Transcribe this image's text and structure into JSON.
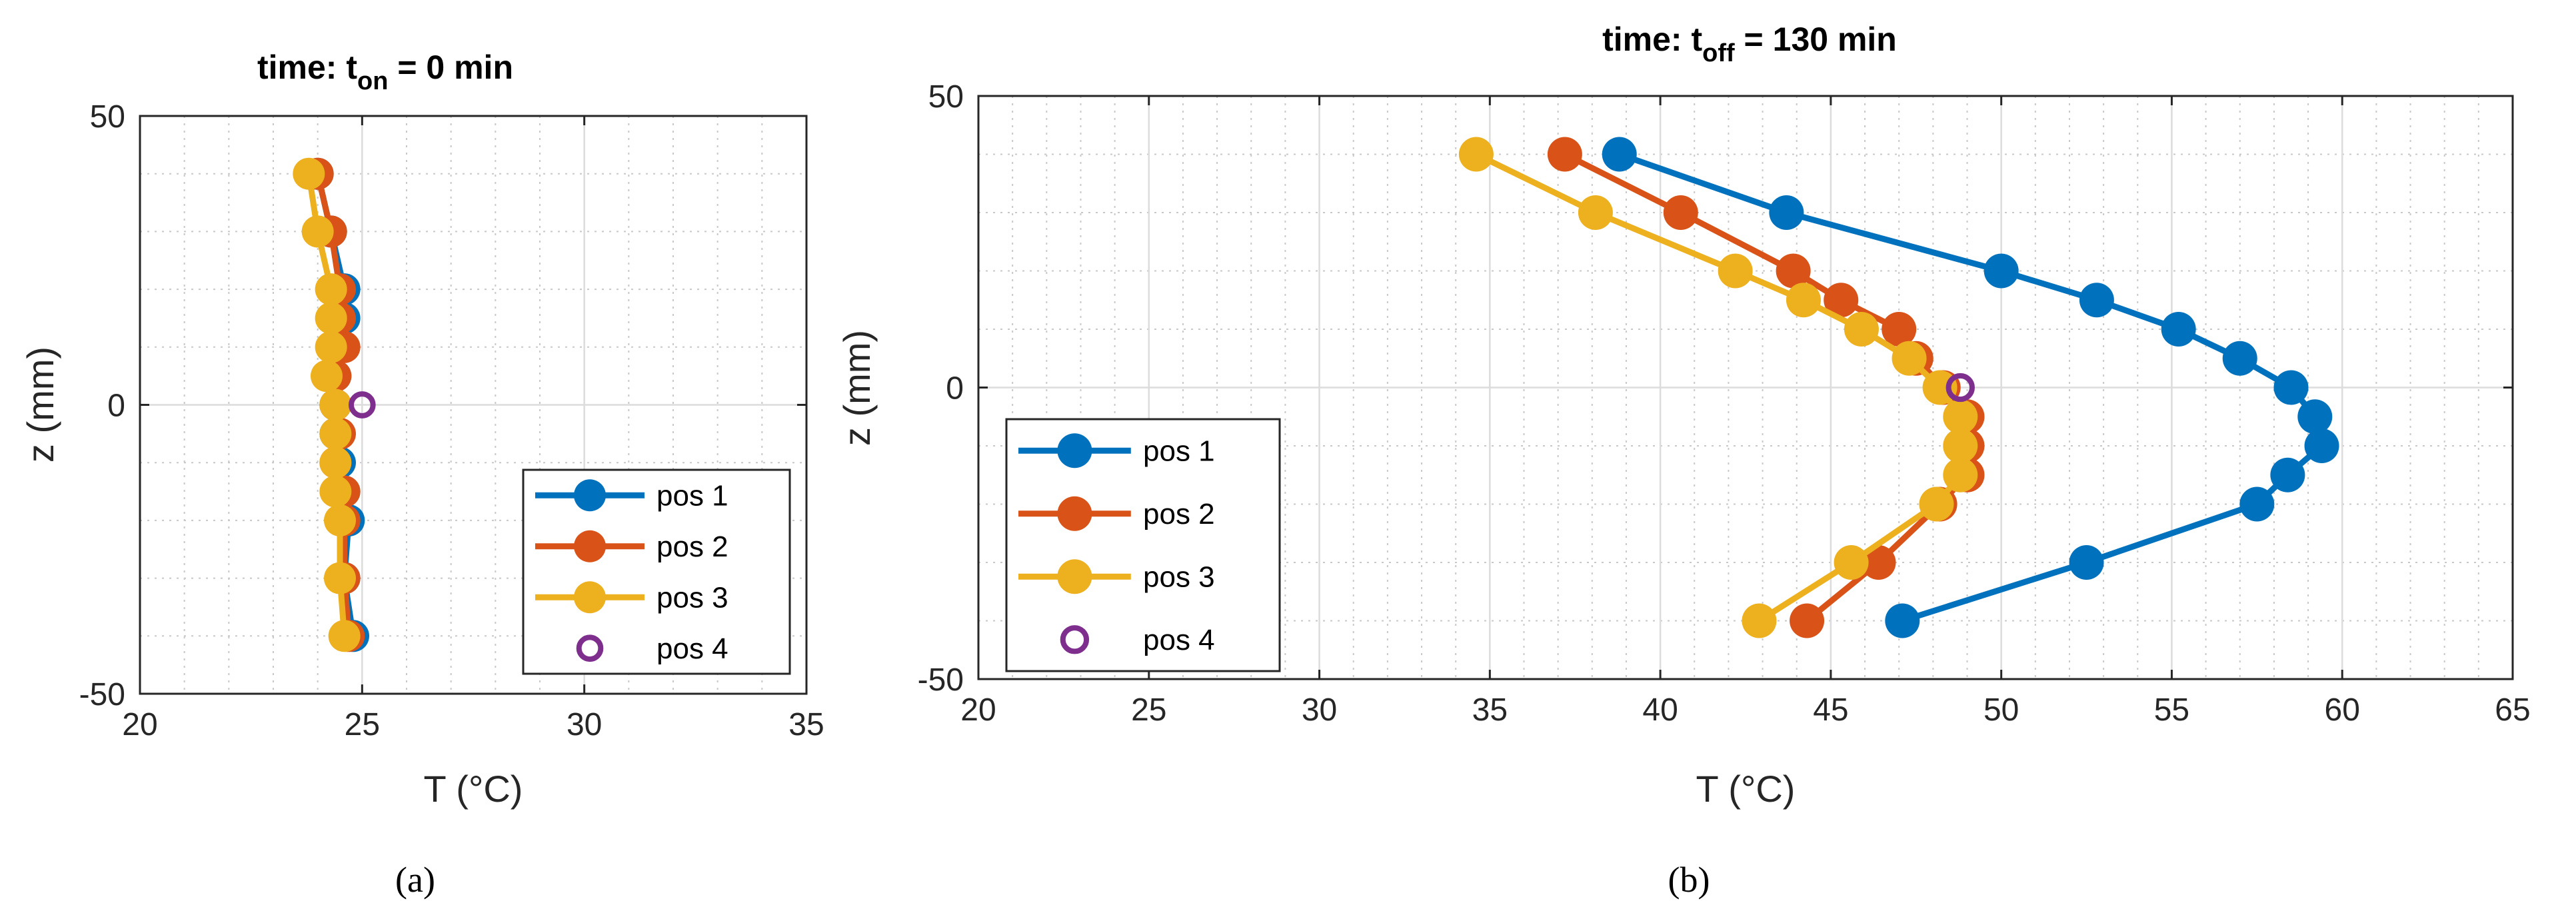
{
  "panel_labels": [
    "(a)",
    "(b)"
  ],
  "chart_data": [
    {
      "type": "line",
      "title": "time: t",
      "title_sub": "on",
      "title_rest": " = 0 min",
      "xlabel": "T (°C)",
      "ylabel": "z (mm)",
      "xlim": [
        20,
        35
      ],
      "ylim": [
        -50,
        50
      ],
      "xticks": [
        20,
        25,
        30,
        35
      ],
      "yticks": [
        -50,
        0,
        50
      ],
      "grid": true,
      "legend_position": "bottom-right",
      "series": [
        {
          "name": "pos 1",
          "color": "#0072BD",
          "marker": "filled",
          "line": true,
          "points": [
            [
              24.0,
              40
            ],
            [
              24.3,
              30
            ],
            [
              24.6,
              20
            ],
            [
              24.6,
              15
            ],
            [
              24.5,
              10
            ],
            [
              24.4,
              5
            ],
            [
              24.4,
              0
            ],
            [
              24.4,
              -5
            ],
            [
              24.5,
              -10
            ],
            [
              24.6,
              -15
            ],
            [
              24.7,
              -20
            ],
            [
              24.6,
              -30
            ],
            [
              24.8,
              -40
            ]
          ]
        },
        {
          "name": "pos 2",
          "color": "#D95319",
          "marker": "filled",
          "line": true,
          "points": [
            [
              24.0,
              40
            ],
            [
              24.3,
              30
            ],
            [
              24.5,
              20
            ],
            [
              24.5,
              15
            ],
            [
              24.6,
              10
            ],
            [
              24.4,
              5
            ],
            [
              24.4,
              0
            ],
            [
              24.5,
              -5
            ],
            [
              24.4,
              -10
            ],
            [
              24.6,
              -15
            ],
            [
              24.6,
              -20
            ],
            [
              24.6,
              -30
            ],
            [
              24.7,
              -40
            ]
          ]
        },
        {
          "name": "pos 3",
          "color": "#EDB120",
          "marker": "filled",
          "line": true,
          "points": [
            [
              23.8,
              40
            ],
            [
              24.0,
              30
            ],
            [
              24.3,
              20
            ],
            [
              24.3,
              15
            ],
            [
              24.3,
              10
            ],
            [
              24.2,
              5
            ],
            [
              24.4,
              0
            ],
            [
              24.4,
              -5
            ],
            [
              24.4,
              -10
            ],
            [
              24.4,
              -15
            ],
            [
              24.5,
              -20
            ],
            [
              24.5,
              -30
            ],
            [
              24.6,
              -40
            ]
          ]
        },
        {
          "name": "pos 4",
          "color": "#7E2F8E",
          "marker": "open",
          "line": false,
          "points": [
            [
              25.0,
              0
            ]
          ]
        }
      ]
    },
    {
      "type": "line",
      "title": "time: t",
      "title_sub": "off",
      "title_rest": " = 130 min",
      "xlabel": "T (°C)",
      "ylabel": "z (mm)",
      "xlim": [
        20,
        65
      ],
      "ylim": [
        -50,
        50
      ],
      "xticks": [
        20,
        25,
        30,
        35,
        40,
        45,
        50,
        55,
        60,
        65
      ],
      "yticks": [
        -50,
        0,
        50
      ],
      "grid": true,
      "legend_position": "bottom-left",
      "series": [
        {
          "name": "pos 1",
          "color": "#0072BD",
          "marker": "filled",
          "line": true,
          "points": [
            [
              38.8,
              40
            ],
            [
              43.7,
              30
            ],
            [
              50.0,
              20
            ],
            [
              52.8,
              15
            ],
            [
              55.2,
              10
            ],
            [
              57.0,
              5
            ],
            [
              58.5,
              0
            ],
            [
              59.2,
              -5
            ],
            [
              59.4,
              -10
            ],
            [
              58.4,
              -15
            ],
            [
              57.5,
              -20
            ],
            [
              52.5,
              -30
            ],
            [
              47.1,
              -40
            ]
          ]
        },
        {
          "name": "pos 2",
          "color": "#D95319",
          "marker": "filled",
          "line": true,
          "points": [
            [
              37.2,
              40
            ],
            [
              40.6,
              30
            ],
            [
              43.9,
              20
            ],
            [
              45.3,
              15
            ],
            [
              47.0,
              10
            ],
            [
              47.5,
              5
            ],
            [
              48.3,
              0
            ],
            [
              49.0,
              -5
            ],
            [
              49.0,
              -10
            ],
            [
              49.0,
              -15
            ],
            [
              48.2,
              -20
            ],
            [
              46.4,
              -30
            ],
            [
              44.3,
              -40
            ]
          ]
        },
        {
          "name": "pos 3",
          "color": "#EDB120",
          "marker": "filled",
          "line": true,
          "points": [
            [
              34.6,
              40
            ],
            [
              38.1,
              30
            ],
            [
              42.2,
              20
            ],
            [
              44.2,
              15
            ],
            [
              45.9,
              10
            ],
            [
              47.3,
              5
            ],
            [
              48.2,
              0
            ],
            [
              48.8,
              -5
            ],
            [
              48.8,
              -10
            ],
            [
              48.8,
              -15
            ],
            [
              48.1,
              -20
            ],
            [
              45.6,
              -30
            ],
            [
              42.9,
              -40
            ]
          ]
        },
        {
          "name": "pos 4",
          "color": "#7E2F8E",
          "marker": "open",
          "line": false,
          "points": [
            [
              48.8,
              0
            ]
          ]
        }
      ]
    }
  ]
}
